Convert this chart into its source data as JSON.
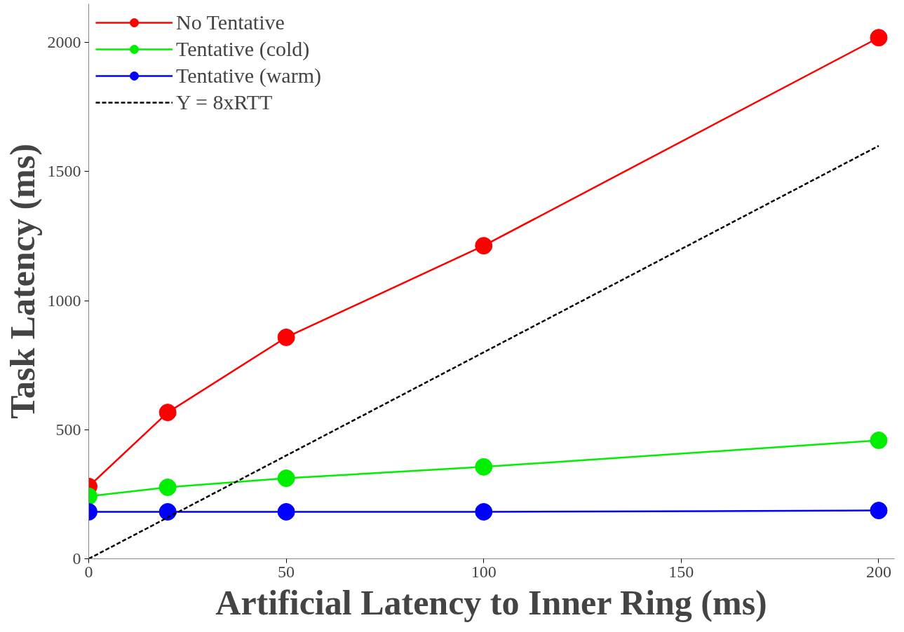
{
  "chart_data": {
    "type": "line",
    "xlabel": "Artificial Latency to Inner Ring (ms)",
    "ylabel": "Task Latency (ms)",
    "x": [
      0,
      20,
      50,
      100,
      200
    ],
    "series": [
      {
        "name": "No Tentative",
        "color": "#ff0000",
        "values": [
          280,
          567,
          858,
          1213,
          2019
        ]
      },
      {
        "name": "Tentative (cold)",
        "color": "#00ee00",
        "values": [
          242,
          277,
          312,
          356,
          459
        ]
      },
      {
        "name": "Tentative (warm)",
        "color": "#0000ff",
        "values": [
          182,
          182,
          182,
          182,
          187
        ]
      },
      {
        "name": "Y = 8xRTT",
        "color": "#000000",
        "x": [
          0,
          200
        ],
        "values": [
          0,
          1600
        ],
        "marker": "none",
        "line_style": "dashed"
      }
    ],
    "xlim": [
      0,
      204
    ],
    "ylim": [
      0,
      2150
    ],
    "xticks": [
      0,
      50,
      100,
      150,
      200
    ],
    "yticks": [
      0,
      500,
      1000,
      1500,
      2000
    ],
    "grid": false,
    "legend": "top left",
    "marker": "circle",
    "line_style": "solid"
  }
}
